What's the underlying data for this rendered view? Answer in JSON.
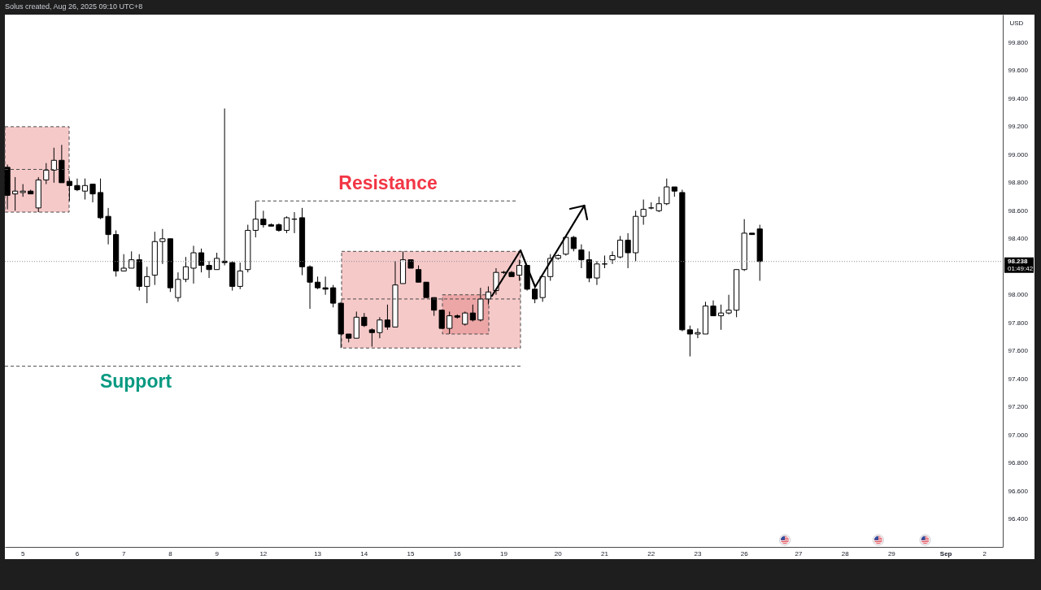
{
  "chart_data": {
    "type": "candlestick",
    "categories": [
      null,
      null,
      "5",
      null,
      null,
      null,
      null,
      null,
      null,
      "6",
      null,
      null,
      null,
      null,
      null,
      "7",
      null,
      null,
      null,
      null,
      null,
      "8",
      null,
      null,
      null,
      null,
      null,
      "9",
      null,
      null,
      null,
      null,
      null,
      "12",
      null,
      null,
      null,
      null,
      null,
      null,
      "13",
      null,
      null,
      null,
      null,
      null,
      "14",
      null,
      null,
      null,
      null,
      null,
      "15",
      null,
      null,
      null,
      null,
      null,
      "16",
      null,
      null,
      null,
      null,
      null,
      "19",
      null,
      null,
      null,
      null,
      null,
      null,
      "20",
      null,
      null,
      null,
      null,
      null,
      "21",
      null,
      null,
      null,
      null,
      null,
      "22",
      null,
      null,
      null,
      null,
      null,
      "23",
      null,
      null,
      null,
      null,
      null,
      "26",
      null,
      null,
      null,
      null,
      null,
      null,
      "27",
      null,
      null,
      null,
      null,
      null,
      "28",
      null,
      null,
      null,
      null,
      null,
      "29",
      null,
      null,
      null,
      null,
      null,
      null,
      "Sep",
      null,
      null,
      null,
      null,
      "2",
      null,
      null
    ],
    "ohlc": [
      [
        98.91,
        98.93,
        98.61,
        98.71
      ],
      [
        98.72,
        98.84,
        98.6,
        98.74
      ],
      [
        98.73,
        98.79,
        98.7,
        98.74
      ],
      [
        98.74,
        98.75,
        98.72,
        98.72
      ],
      [
        98.62,
        98.84,
        98.59,
        98.82
      ],
      [
        98.82,
        98.94,
        98.79,
        98.89
      ],
      [
        98.89,
        99.05,
        98.8,
        98.96
      ],
      [
        98.96,
        99.07,
        98.8,
        98.8
      ],
      [
        98.81,
        98.83,
        98.67,
        98.78
      ],
      [
        98.78,
        98.83,
        98.74,
        98.75
      ],
      [
        98.74,
        98.83,
        98.68,
        98.78
      ],
      [
        98.79,
        98.79,
        98.66,
        98.72
      ],
      [
        98.73,
        98.83,
        98.54,
        98.55
      ],
      [
        98.56,
        98.62,
        98.36,
        98.43
      ],
      [
        98.43,
        98.46,
        98.13,
        98.17
      ],
      [
        98.17,
        98.29,
        98.17,
        98.19
      ],
      [
        98.19,
        98.31,
        98.19,
        98.25
      ],
      [
        98.25,
        98.29,
        98.03,
        98.06
      ],
      [
        98.06,
        98.2,
        97.94,
        98.13
      ],
      [
        98.14,
        98.45,
        98.07,
        98.38
      ],
      [
        98.38,
        98.47,
        98.22,
        98.4
      ],
      [
        98.4,
        98.4,
        98.02,
        98.05
      ],
      [
        97.98,
        98.16,
        97.95,
        98.11
      ],
      [
        98.11,
        98.27,
        98.09,
        98.2
      ],
      [
        98.19,
        98.35,
        98.08,
        98.3
      ],
      [
        98.3,
        98.33,
        98.16,
        98.21
      ],
      [
        98.21,
        98.24,
        98.12,
        98.18
      ],
      [
        98.18,
        98.3,
        98.18,
        98.26
      ],
      [
        98.24,
        99.33,
        98.21,
        98.23
      ],
      [
        98.23,
        98.24,
        98.03,
        98.06
      ],
      [
        98.06,
        98.23,
        98.04,
        98.17
      ],
      [
        98.18,
        98.5,
        98.16,
        98.46
      ],
      [
        98.46,
        98.67,
        98.41,
        98.54
      ],
      [
        98.54,
        98.6,
        98.48,
        98.5
      ],
      [
        98.5,
        98.51,
        98.49,
        98.49
      ],
      [
        98.5,
        98.51,
        98.45,
        98.46
      ],
      [
        98.46,
        98.56,
        98.44,
        98.55
      ],
      [
        98.54,
        98.59,
        98.44,
        98.54
      ],
      [
        98.55,
        98.62,
        98.14,
        98.2
      ],
      [
        98.2,
        98.21,
        97.9,
        98.09
      ],
      [
        98.09,
        98.13,
        98.04,
        98.05
      ],
      [
        98.05,
        98.13,
        98.0,
        98.04
      ],
      [
        98.05,
        98.07,
        97.91,
        97.94
      ],
      [
        97.94,
        97.95,
        97.62,
        97.72
      ],
      [
        97.72,
        97.72,
        97.66,
        97.69
      ],
      [
        97.69,
        97.88,
        97.69,
        97.84
      ],
      [
        97.84,
        97.87,
        97.77,
        97.78
      ],
      [
        97.75,
        97.76,
        97.63,
        97.73
      ],
      [
        97.73,
        97.84,
        97.69,
        97.82
      ],
      [
        97.82,
        97.93,
        97.75,
        97.77
      ],
      [
        97.77,
        98.24,
        97.77,
        98.07
      ],
      [
        98.08,
        98.31,
        98.08,
        98.25
      ],
      [
        98.25,
        98.25,
        98.19,
        98.19
      ],
      [
        98.18,
        98.21,
        98.09,
        98.09
      ],
      [
        98.09,
        98.09,
        97.98,
        97.98
      ],
      [
        97.98,
        97.98,
        97.85,
        97.89
      ],
      [
        97.89,
        97.89,
        97.76,
        97.76
      ],
      [
        97.76,
        97.88,
        97.72,
        97.85
      ],
      [
        97.85,
        97.86,
        97.83,
        97.84
      ],
      [
        97.79,
        97.88,
        97.78,
        97.87
      ],
      [
        97.87,
        97.93,
        97.81,
        97.82
      ],
      [
        97.82,
        98.05,
        97.81,
        97.97
      ],
      [
        97.97,
        98.06,
        97.93,
        98.02
      ],
      [
        98.03,
        98.19,
        98.0,
        98.16
      ],
      [
        98.16,
        98.17,
        98.15,
        98.16
      ],
      [
        98.16,
        98.17,
        98.13,
        98.13
      ],
      [
        98.14,
        98.25,
        98.1,
        98.21
      ],
      [
        98.21,
        98.21,
        98.03,
        98.04
      ],
      [
        98.04,
        98.06,
        97.94,
        97.97
      ],
      [
        97.98,
        98.13,
        97.95,
        98.13
      ],
      [
        98.13,
        98.29,
        98.1,
        98.26
      ],
      [
        98.26,
        98.29,
        98.25,
        98.28
      ],
      [
        98.29,
        98.42,
        98.28,
        98.41
      ],
      [
        98.41,
        98.42,
        98.31,
        98.33
      ],
      [
        98.32,
        98.36,
        98.19,
        98.25
      ],
      [
        98.25,
        98.31,
        98.09,
        98.12
      ],
      [
        98.12,
        98.24,
        98.07,
        98.22
      ],
      [
        98.22,
        98.28,
        98.19,
        98.22
      ],
      [
        98.25,
        98.31,
        98.22,
        98.28
      ],
      [
        98.27,
        98.42,
        98.26,
        98.39
      ],
      [
        98.39,
        98.44,
        98.19,
        98.3
      ],
      [
        98.3,
        98.6,
        98.24,
        98.56
      ],
      [
        98.56,
        98.68,
        98.5,
        98.61
      ],
      [
        98.62,
        98.66,
        98.61,
        98.62
      ],
      [
        98.6,
        98.7,
        98.59,
        98.65
      ],
      [
        98.65,
        98.83,
        98.64,
        98.77
      ],
      [
        98.77,
        98.77,
        98.7,
        98.74
      ],
      [
        98.73,
        98.75,
        97.74,
        97.75
      ],
      [
        97.75,
        97.78,
        97.56,
        97.72
      ],
      [
        97.72,
        97.76,
        97.69,
        97.73
      ],
      [
        97.72,
        97.95,
        97.72,
        97.92
      ],
      [
        97.92,
        97.96,
        97.85,
        97.85
      ],
      [
        97.85,
        97.93,
        97.75,
        97.87
      ],
      [
        97.87,
        98.0,
        97.86,
        97.89
      ],
      [
        97.89,
        98.18,
        97.84,
        98.18
      ],
      [
        98.18,
        98.54,
        98.17,
        98.44
      ],
      [
        98.44,
        98.44,
        98.43,
        98.43
      ],
      [
        98.47,
        98.5,
        98.1,
        98.238
      ],
      null,
      null,
      null,
      null,
      null,
      null,
      null,
      null,
      null,
      null,
      null,
      null,
      null,
      null,
      null,
      null,
      null,
      null,
      null,
      null,
      null,
      null,
      null,
      null,
      null,
      null,
      null,
      null,
      null,
      null,
      null
    ],
    "ylim": [
      96.2,
      100.0
    ],
    "yticks": [
      {
        "value": 96.4,
        "label": "96.400"
      },
      {
        "value": 96.6,
        "label": "96.600"
      },
      {
        "value": 96.8,
        "label": "96.800"
      },
      {
        "value": 97.0,
        "label": "97.000"
      },
      {
        "value": 97.2,
        "label": "97.200"
      },
      {
        "value": 97.4,
        "label": "97.400"
      },
      {
        "value": 97.6,
        "label": "97.600"
      },
      {
        "value": 97.8,
        "label": "97.800"
      },
      {
        "value": 98.0,
        "label": "98.000"
      },
      {
        "value": 98.4,
        "label": "98.400"
      },
      {
        "value": 98.6,
        "label": "98.600"
      },
      {
        "value": 98.8,
        "label": "98.800"
      },
      {
        "value": 99.0,
        "label": "99.000"
      },
      {
        "value": 99.2,
        "label": "99.200"
      },
      {
        "value": 99.4,
        "label": "99.400"
      },
      {
        "value": 99.6,
        "label": "99.600"
      },
      {
        "value": 99.8,
        "label": "99.800"
      }
    ],
    "ylabel": "USD",
    "ref_lines": [
      {
        "axis": "y",
        "value": 98.238,
        "label": "98.238",
        "line_style": "dotted"
      },
      {
        "axis": "y",
        "value": 98.67,
        "label": "Resistance",
        "line_style": "dashed"
      },
      {
        "axis": "y",
        "value": 97.49,
        "label": "Support",
        "line_style": "dashed"
      },
      {
        "axis": "y",
        "value": 97.97,
        "line_style": "dashed"
      }
    ],
    "bands": [
      {
        "axis": "y",
        "from": 98.59,
        "to": 99.2,
        "color": "#f6c9c9"
      },
      {
        "axis": "y",
        "from": 97.62,
        "to": 98.31,
        "color": "#f6c9c9"
      },
      {
        "axis": "y",
        "from": 97.72,
        "to": 98.0,
        "color": "#eda6a6"
      }
    ],
    "annotations": [
      "Solus created, Aug 26, 2025 09:10 UTC+8",
      "01:49:42"
    ]
  }
}
